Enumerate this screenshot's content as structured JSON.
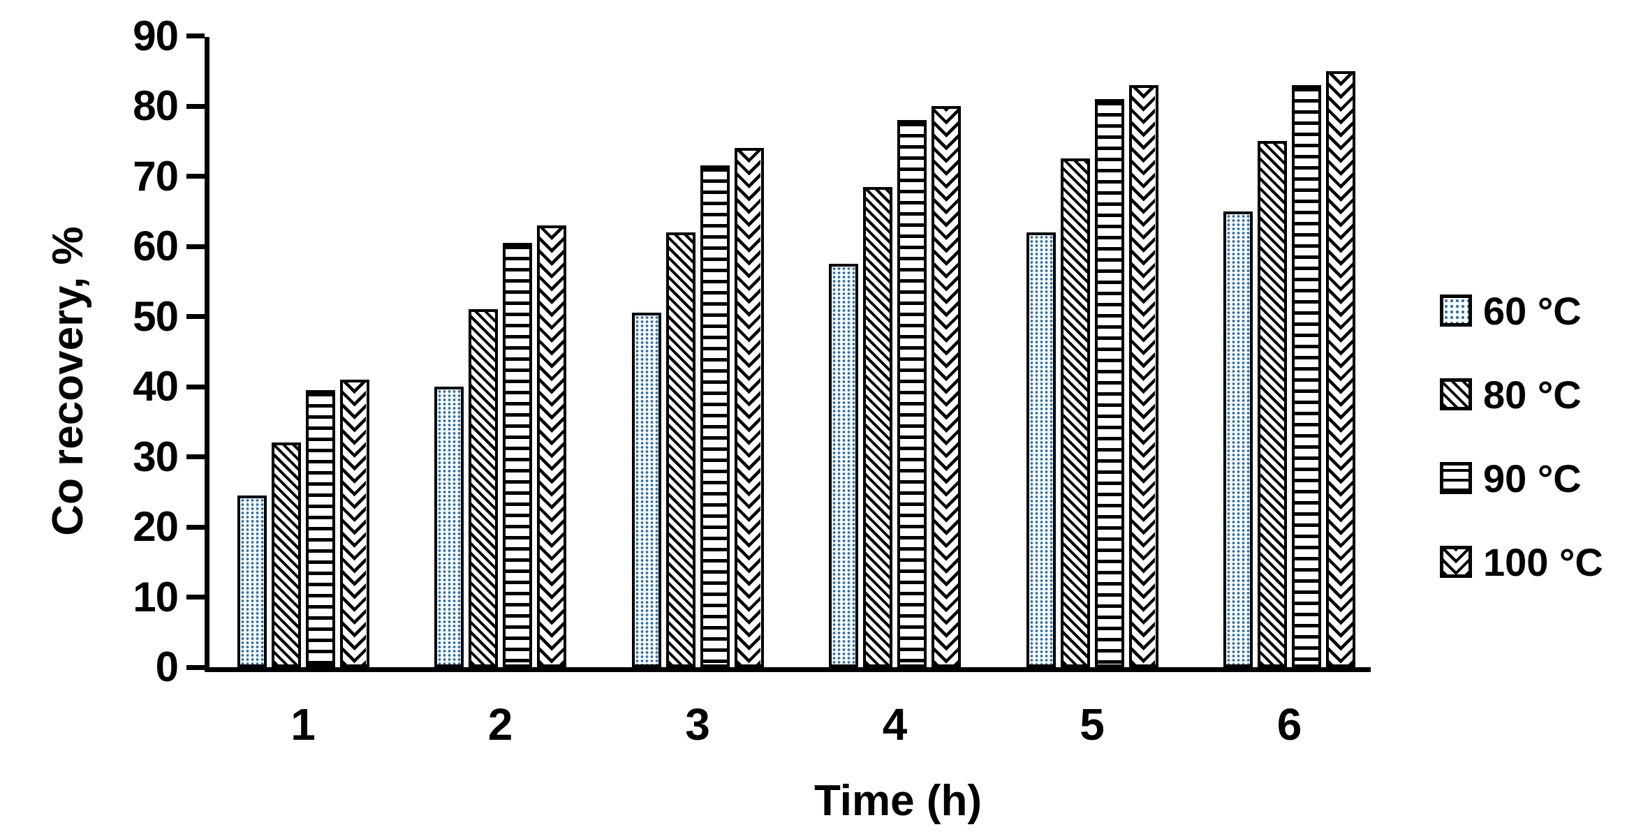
{
  "chart_data": {
    "type": "bar",
    "title": "",
    "xlabel": "Time (h)",
    "ylabel": "Co recovery, %",
    "categories": [
      "1",
      "2",
      "3",
      "4",
      "5",
      "6"
    ],
    "series": [
      {
        "name": "60 °C",
        "pattern": "blue-dots",
        "values": [
          24.5,
          40,
          50.5,
          57.5,
          62,
          65
        ]
      },
      {
        "name": "80 °C",
        "pattern": "diagonal-stripes",
        "values": [
          32,
          51,
          62,
          68.5,
          72.5,
          75
        ]
      },
      {
        "name": "90 °C",
        "pattern": "horizontal-lines",
        "values": [
          39.5,
          60.5,
          71.5,
          78,
          81,
          83
        ]
      },
      {
        "name": "100 °C",
        "pattern": "chevron",
        "values": [
          41,
          63,
          74,
          80,
          83,
          85
        ]
      }
    ],
    "ylim": [
      0,
      90
    ],
    "ytick_step": 10,
    "ytick_labels": [
      "0",
      "10",
      "20",
      "30",
      "40",
      "50",
      "60",
      "70",
      "80",
      "90"
    ],
    "grid": false,
    "legend_position": "right",
    "colors": {
      "accent_blue": "#2d74b5",
      "ink": "#000000",
      "background": "#ffffff"
    }
  }
}
